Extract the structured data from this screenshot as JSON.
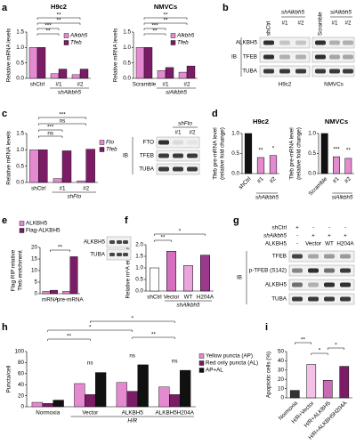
{
  "panels": [
    "a",
    "b",
    "c",
    "d",
    "e",
    "f",
    "g",
    "h",
    "i"
  ],
  "chart_data": [
    {
      "type": "bar",
      "title": "H9c2",
      "ylabel": "Relative mRNA levels",
      "categories": [
        "shCtrl",
        "#1",
        "#2"
      ],
      "group_label": "shAlkbh5",
      "series": [
        {
          "name": "Alkbh5",
          "color": "#e38ad0",
          "values": [
            1.0,
            0.15,
            0.12
          ]
        },
        {
          "name": "Tfeb",
          "color": "#7b1c66",
          "values": [
            1.0,
            0.3,
            0.3
          ]
        }
      ],
      "ylim": [
        0,
        1.5
      ],
      "yticks": [
        {
          "value": 0,
          "label": "0.0"
        },
        0.5,
        {
          "value": 1,
          "label": "1.0"
        },
        1.5
      ],
      "annotations": [
        "**",
        "**",
        "***",
        "**"
      ]
    },
    {
      "type": "bar",
      "title": "NMVCs",
      "ylabel": "Relative mRNA levels",
      "categories": [
        "Scramble",
        "#1",
        "#2"
      ],
      "group_label": "siAlkbh5",
      "series": [
        {
          "name": "Alkbh5",
          "color": "#e38ad0",
          "values": [
            1.0,
            0.25,
            0.2
          ]
        },
        {
          "name": "Tfeb",
          "color": "#7b1c66",
          "values": [
            1.0,
            0.35,
            0.4
          ]
        }
      ],
      "ylim": [
        0,
        1.5
      ],
      "yticks": [
        {
          "value": 0,
          "label": "0.0"
        },
        0.5,
        {
          "value": 1,
          "label": "1.0"
        },
        1.5
      ],
      "annotations": [
        "**",
        "**",
        "***",
        "**"
      ]
    },
    {
      "type": "bar",
      "ylabel": "Relative mRNA levels",
      "categories": [
        "shCtrl",
        "#1",
        "#2"
      ],
      "group_label": "shFto",
      "series": [
        {
          "name": "Fto",
          "color": "#e38ad0",
          "values": [
            1.0,
            0.12,
            0.05
          ]
        },
        {
          "name": "Tfeb",
          "color": "#7b1c66",
          "values": [
            1.0,
            0.97,
            1.02
          ]
        }
      ],
      "ylim": [
        0,
        1.5
      ],
      "yticks": [
        {
          "value": 0,
          "label": "0.0"
        },
        0.5,
        {
          "value": 1,
          "label": "1.0"
        },
        1.5
      ],
      "annotations": [
        "***",
        "ns",
        "***",
        "ns"
      ]
    },
    {
      "type": "bar",
      "title": "H9c2",
      "ylabel": [
        "Tfeb pre-mRNA level",
        "(relative fold change)"
      ],
      "categories": [
        "shCtrl",
        "#1",
        "#2"
      ],
      "group_label": "shAlkbh5",
      "values": [
        1.0,
        0.4,
        0.45
      ],
      "colors": [
        "#111111",
        "#e38ad0",
        "#e38ad0"
      ],
      "ylim": [
        0,
        1
      ],
      "yticks": [
        {
          "value": 0,
          "label": "0.0"
        },
        0.5,
        {
          "value": 1,
          "label": "1.0"
        }
      ],
      "annotations": [
        "**",
        "*"
      ]
    },
    {
      "type": "bar",
      "title": "NMVCs",
      "ylabel": [
        "Tfeb pre-mRNA level",
        "(relative fold change)"
      ],
      "categories": [
        "Scramble",
        "#1",
        "#2"
      ],
      "group_label": "siAlkbh5",
      "values": [
        1.0,
        0.42,
        0.38
      ],
      "colors": [
        "#111111",
        "#e38ad0",
        "#e38ad0"
      ],
      "ylim": [
        0,
        1
      ],
      "yticks": [
        {
          "value": 0,
          "label": "0.0"
        },
        0.5,
        {
          "value": 1,
          "label": "1.0"
        }
      ],
      "annotations": [
        "***",
        "**"
      ]
    },
    {
      "type": "bar",
      "ylabel": [
        "Flag RIP relative",
        "Tfeb enrichment"
      ],
      "categories": [
        "mRNA",
        "pre-mRNA"
      ],
      "series": [
        {
          "name": "ALKBH5",
          "color": "#e38ad0",
          "values": [
            1,
            1
          ]
        },
        {
          "name": "Flag-ALKBH5",
          "color": "#7b1c66",
          "values": [
            1.5,
            16
          ]
        }
      ],
      "ylim": [
        0,
        20
      ],
      "yticks": [
        0,
        5,
        10,
        15,
        20
      ],
      "annotations": [
        "**"
      ]
    },
    {
      "type": "bar",
      "ylabel": "Relative m⁶A enrichment",
      "categories": [
        "shCtrl",
        "Vector",
        "WT",
        "H204A"
      ],
      "group_label": "shAlkbh5",
      "values": [
        1.0,
        1.72,
        1.1,
        1.55
      ],
      "colors": [
        "#ffffff",
        "#d66fc0",
        "#e9a6dc",
        "#9b3a8c"
      ],
      "ylim": [
        0,
        2
      ],
      "yticks": [
        {
          "value": 0,
          "label": "0.0"
        },
        0.5,
        {
          "value": 1,
          "label": "1.0"
        },
        1.5,
        {
          "value": 2,
          "label": "2.0"
        }
      ],
      "annotations": [
        "**",
        "*"
      ]
    },
    {
      "type": "bar",
      "ylabel": "Puncta/cell",
      "categories": [
        "Normoxia",
        "Vector",
        "ALKBH5",
        "ALKBH5H204A"
      ],
      "group_label": "H/R",
      "series": [
        {
          "name": "Yellow puncta (AP)",
          "color": "#e38ad0",
          "values": [
            8,
            42,
            44,
            36
          ]
        },
        {
          "name": "Red only puncta (AL)",
          "color": "#7b1c66",
          "values": [
            6,
            22,
            28,
            22
          ]
        },
        {
          "name": "AP+AL",
          "color": "#111111",
          "values": [
            12,
            62,
            76,
            66
          ]
        }
      ],
      "ylim": [
        0,
        100
      ],
      "yticks": [
        0,
        20,
        40,
        60,
        80,
        100
      ],
      "annotations": [
        "*",
        "**",
        "**",
        "*",
        "ns",
        "ns",
        "ns"
      ]
    },
    {
      "type": "bar",
      "ylabel": "Apoptotic cells (%)",
      "categories": [
        "Normoxia",
        "H/R+Vector",
        "H/R+ALKBH5",
        "H/R+ALKBH5H204A"
      ],
      "values": [
        8,
        36,
        19,
        34
      ],
      "colors": [
        "#333333",
        "#f3c0e6",
        "#c86bb5",
        "#7b1c66"
      ],
      "ylim": [
        0,
        50
      ],
      "yticks": [
        0,
        10,
        20,
        30,
        40,
        50
      ],
      "annotations": [
        "**",
        "*",
        "*"
      ]
    }
  ],
  "blots": {
    "b": {
      "headers": [
        "shCtrl",
        "shAlkbh5",
        "Scramble",
        "siAlkbh5"
      ],
      "lanes": [
        "#1",
        "#2",
        "#1",
        "#2"
      ],
      "rows": [
        "ALKBH5",
        "TFEB",
        "TUBA"
      ],
      "ib": "IB",
      "cells": [
        "H9c2",
        "NMVCs"
      ]
    },
    "c": {
      "header": "shFto",
      "lanes": [
        "#1",
        "#2"
      ],
      "rows": [
        "FTO",
        "TFEB",
        "TUBA"
      ],
      "ib": "IB"
    },
    "e": {
      "rows": [
        "ALKBH5",
        "TUBA"
      ]
    },
    "g": {
      "conditions": [
        {
          "label": "shCtrl",
          "lanes": [
            "+",
            "-",
            "-",
            "-"
          ]
        },
        {
          "label": "shAlkbh5",
          "lanes": [
            "-",
            "+",
            "+",
            "+"
          ]
        },
        {
          "label": "ALKBH5",
          "lanes": [
            "-",
            "Vector",
            "WT",
            "H204A"
          ]
        }
      ],
      "rows": [
        "TFEB",
        "p-TFEB (S142)",
        "ALKBH5",
        "TUBA"
      ],
      "ib": "IB"
    }
  }
}
